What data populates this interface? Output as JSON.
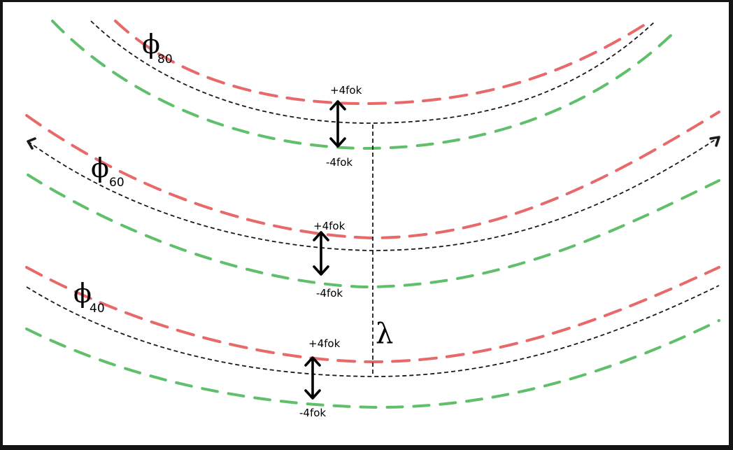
{
  "colors": {
    "upper_offset": "#e8696a",
    "lower_offset": "#5fbf6a",
    "contour": "#1a1a1a",
    "arrow": "#000000",
    "frame": "#141414"
  },
  "contours": [
    {
      "symbol": "ϕ",
      "subscript": "80",
      "plus_label": "+4fok",
      "minus_label": "-4fok"
    },
    {
      "symbol": "ϕ",
      "subscript": "60",
      "plus_label": "+4fok",
      "minus_label": "-4fok"
    },
    {
      "symbol": "ϕ",
      "subscript": "40",
      "plus_label": "+4fok",
      "minus_label": "-4fok"
    }
  ],
  "spacing_label": "λ",
  "icons": {
    "double_arrow": "double-arrow-vertical-icon"
  }
}
